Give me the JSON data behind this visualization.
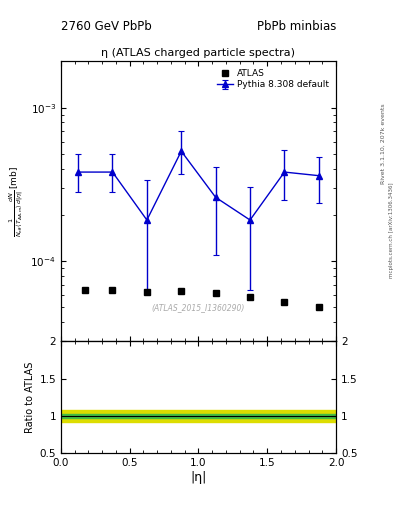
{
  "title_left": "2760 GeV PbPb",
  "title_right": "PbPb minbias",
  "plot_title": "η (ATLAS charged particle spectra)",
  "right_label_top": "Rivet 3.1.10, 207k events",
  "right_label_bottom": "mcplots.cern.ch [arXiv:1306.3436]",
  "watermark": "(ATLAS_2015_I1360290)",
  "xlabel": "|η|",
  "ratio_ylabel": "Ratio to ATLAS",
  "xlim": [
    0,
    2
  ],
  "ylim_log": [
    3e-05,
    0.002
  ],
  "ratio_ylim": [
    0.5,
    2.0
  ],
  "atlas_x": [
    0.175,
    0.375,
    0.625,
    0.875,
    1.125,
    1.375,
    1.625,
    1.875
  ],
  "atlas_y": [
    6.5e-05,
    6.5e-05,
    6.3e-05,
    6.4e-05,
    6.2e-05,
    5.8e-05,
    5.4e-05,
    5e-05
  ],
  "pythia_x": [
    0.125,
    0.375,
    0.625,
    0.875,
    1.125,
    1.375,
    1.625,
    1.875
  ],
  "pythia_y": [
    0.00038,
    0.00038,
    0.000185,
    0.00052,
    0.00026,
    0.000185,
    0.00038,
    0.00036
  ],
  "pythia_yerr_lo": [
    0.0001,
    0.0001,
    0.00012,
    0.00015,
    0.00015,
    0.00012,
    0.00013,
    0.00012
  ],
  "pythia_yerr_hi": [
    0.00012,
    0.00012,
    0.00015,
    0.00018,
    0.00015,
    0.00012,
    0.00015,
    0.00012
  ],
  "ratio_green_lo": 0.975,
  "ratio_green_hi": 1.025,
  "ratio_yellow_lo": 0.92,
  "ratio_yellow_hi": 1.08,
  "line_color": "#0000cc",
  "marker_color": "#000000",
  "green_color": "#44bb44",
  "yellow_color": "#dddd00",
  "bg_color": "#ffffff"
}
